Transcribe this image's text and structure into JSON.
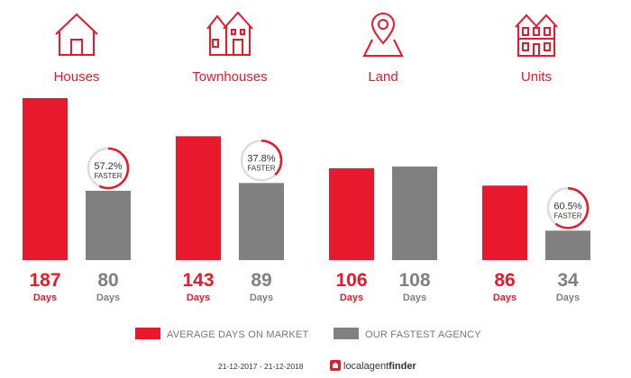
{
  "colors": {
    "accent": "#e8192c",
    "agency": "#808080",
    "text_dark": "#333333",
    "text_muted": "#777777"
  },
  "chart_data": {
    "type": "bar",
    "title": "",
    "xlabel": "",
    "ylabel": "",
    "ylim": [
      0,
      187
    ],
    "categories": [
      "Houses",
      "Townhouses",
      "Land",
      "Units"
    ],
    "category_icons": [
      "house-icon",
      "townhouse-icon",
      "map-pin-icon",
      "units-building-icon"
    ],
    "series": [
      {
        "name": "AVERAGE DAYS ON MARKET",
        "color": "#e8192c",
        "values": [
          187,
          143,
          106,
          86
        ]
      },
      {
        "name": "OUR FASTEST AGENCY",
        "color": "#808080",
        "values": [
          80,
          89,
          108,
          34
        ]
      }
    ],
    "unit": "Days",
    "faster_badges": [
      {
        "pct": "57.2%",
        "label": "FASTER",
        "fraction": 0.572
      },
      {
        "pct": "37.8%",
        "label": "FASTER",
        "fraction": 0.378
      },
      null,
      {
        "pct": "60.5%",
        "label": "FASTER",
        "fraction": 0.605
      }
    ],
    "legend_position": "bottom",
    "grid": false
  },
  "footer": {
    "date_range": "21-12-2017 - 21-12-2018",
    "brand_light": "localagent",
    "brand_bold": "finder"
  }
}
